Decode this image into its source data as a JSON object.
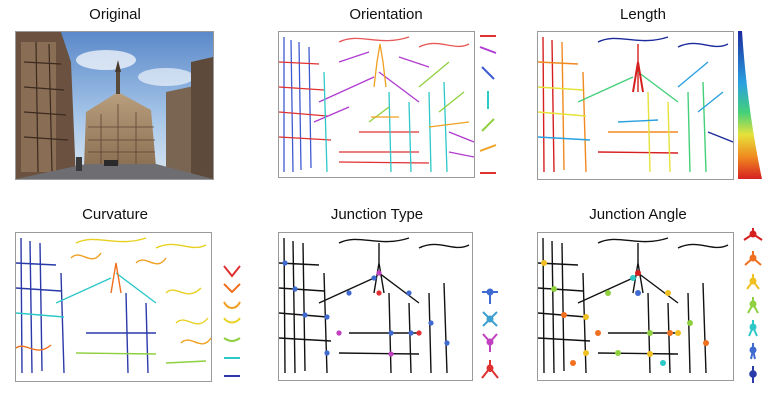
{
  "figure": {
    "panels": [
      {
        "id": "original",
        "title": "Original"
      },
      {
        "id": "orientation",
        "title": "Orientation"
      },
      {
        "id": "length",
        "title": "Length"
      },
      {
        "id": "curvature",
        "title": "Curvature"
      },
      {
        "id": "junction_type",
        "title": "Junction Type"
      },
      {
        "id": "junction_angle",
        "title": "Junction Angle"
      }
    ],
    "legends": {
      "orientation_colors": [
        "#e03030",
        "#b03bd0",
        "#3f5bd0",
        "#2ec8c8",
        "#8fd040",
        "#f0a020",
        "#e03030"
      ],
      "length_colormap": [
        "#1b2a9c",
        "#2aa0e0",
        "#44d07a",
        "#e6e23a",
        "#f08a20",
        "#d62020"
      ],
      "curvature_colors": [
        "#e03030",
        "#f07020",
        "#f0a020",
        "#e8d020",
        "#8fd040",
        "#2ec8c8",
        "#2a3aa8"
      ],
      "junction_type_colors": [
        "#3f6ad0",
        "#3fa0d0",
        "#c040c0",
        "#e03030"
      ],
      "junction_type_icons": [
        "T-junction-icon",
        "X-junction-icon",
        "Y-junction-icon",
        "arrow-junction-icon"
      ],
      "junction_angle_colors": [
        "#d62020",
        "#f07020",
        "#f0c020",
        "#8fd040",
        "#2ec8c8",
        "#3f6ad0",
        "#2a3aa8"
      ]
    }
  }
}
